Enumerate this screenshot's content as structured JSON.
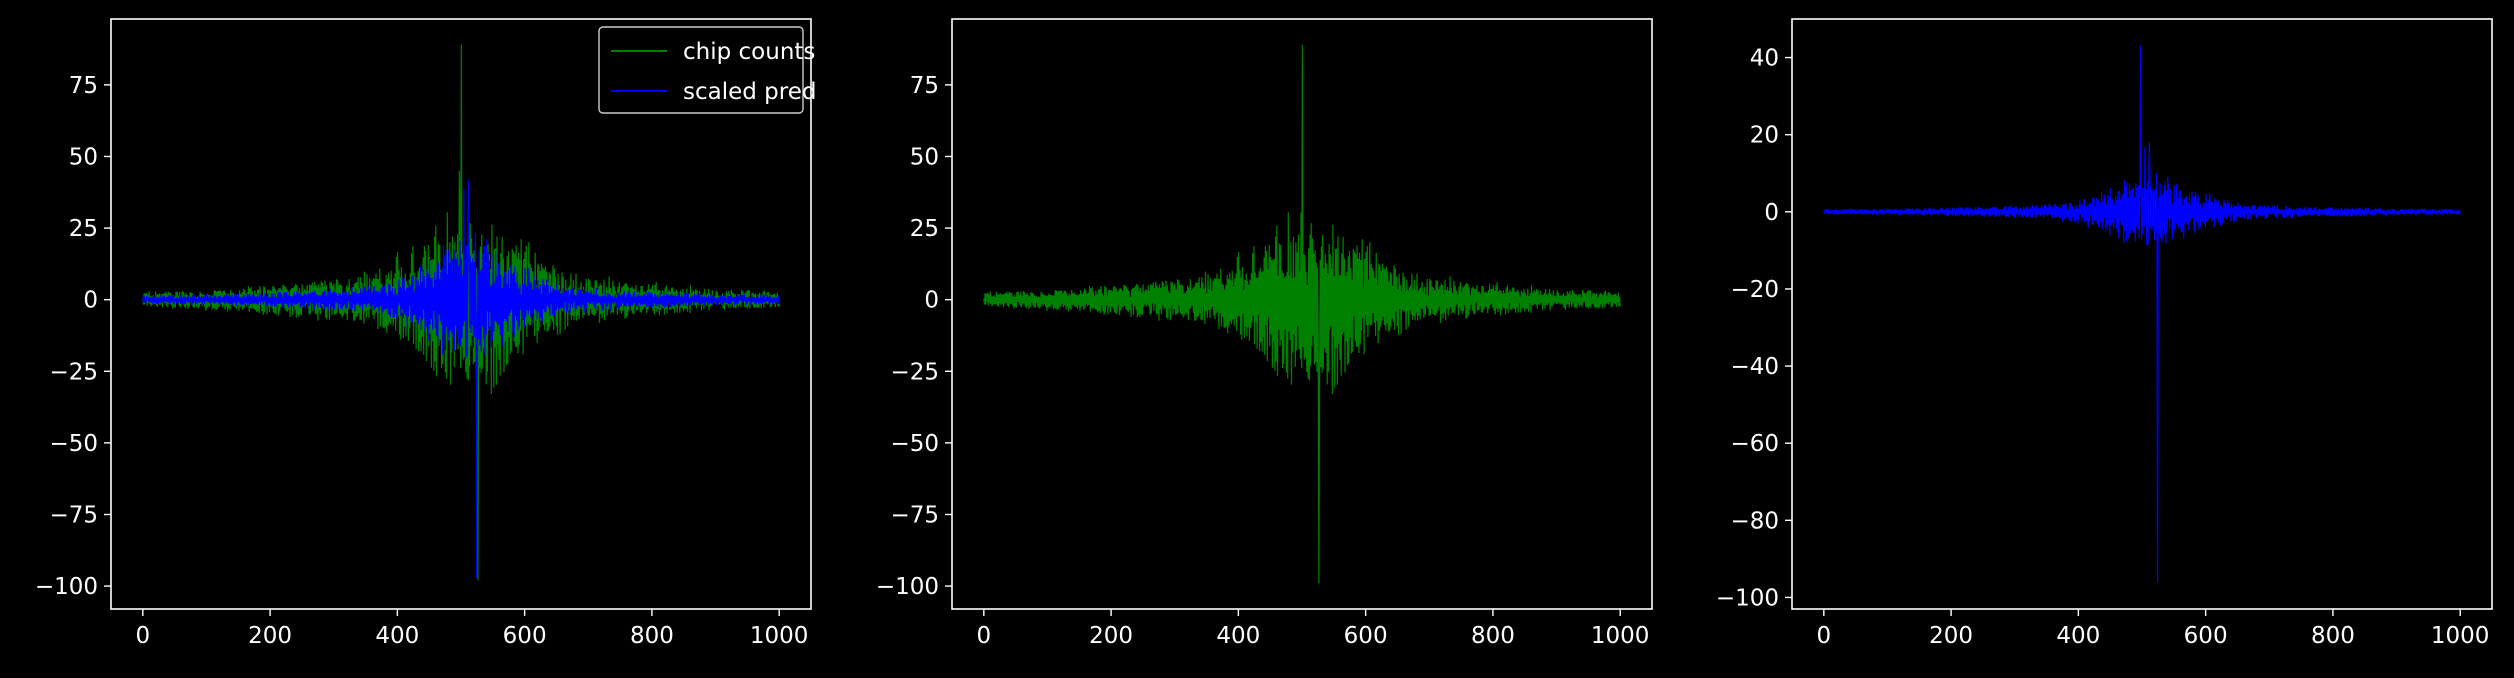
{
  "figure": {
    "background": "#000000",
    "foreground": "#ffffff"
  },
  "chart_data": [
    {
      "type": "line",
      "title": "",
      "xlabel": "",
      "ylabel": "",
      "xlim": [
        -50,
        1050
      ],
      "ylim": [
        -108,
        98
      ],
      "xticks": [
        0,
        200,
        400,
        600,
        800,
        1000
      ],
      "yticks": [
        -100,
        -75,
        -50,
        -25,
        0,
        25,
        50,
        75
      ],
      "grid": false,
      "legend": {
        "placement": "top-right",
        "entries": [
          "chip counts",
          "scaled pred"
        ]
      },
      "series": [
        {
          "name": "chip counts",
          "color": "#008000",
          "ref": "chip",
          "scale": 1.0,
          "x_range": [
            0,
            1000
          ],
          "points": 1000,
          "peaks": [
            {
              "x": 500,
              "y": 89
            },
            {
              "x": 527,
              "y": -98
            },
            {
              "x": 497,
              "y": 45
            }
          ]
        },
        {
          "name": "scaled pred",
          "color": "#0000ff",
          "ref": "pred",
          "scale": 1.0,
          "x_range": [
            0,
            1000
          ],
          "points": 1000,
          "peaks": [
            {
              "x": 512,
              "y": 42
            },
            {
              "x": 525,
              "y": -97
            },
            {
              "x": 505,
              "y": 39
            }
          ]
        }
      ]
    },
    {
      "type": "line",
      "title": "",
      "xlabel": "",
      "ylabel": "",
      "xlim": [
        -50,
        1050
      ],
      "ylim": [
        -108,
        98
      ],
      "xticks": [
        0,
        200,
        400,
        600,
        800,
        1000
      ],
      "yticks": [
        -100,
        -75,
        -50,
        -25,
        0,
        25,
        50,
        75
      ],
      "grid": false,
      "series": [
        {
          "color": "#008000",
          "ref": "chip",
          "scale": 1.0,
          "x_range": [
            0,
            1000
          ],
          "points": 1000,
          "peaks": [
            {
              "x": 500,
              "y": 89
            },
            {
              "x": 527,
              "y": -99
            }
          ]
        }
      ]
    },
    {
      "type": "line",
      "title": "",
      "xlabel": "",
      "ylabel": "",
      "xlim": [
        -50,
        1050
      ],
      "ylim": [
        -103,
        50
      ],
      "xticks": [
        0,
        200,
        400,
        600,
        800,
        1000
      ],
      "yticks": [
        -100,
        -80,
        -60,
        -40,
        -20,
        0,
        20,
        40
      ],
      "grid": false,
      "series": [
        {
          "color": "#0000ff",
          "ref": "pred",
          "scale": 0.43,
          "x_range": [
            0,
            1000
          ],
          "points": 1000,
          "peaks": [
            {
              "x": 497,
              "y": 43
            },
            {
              "x": 525,
              "y": -96
            }
          ]
        }
      ]
    }
  ]
}
